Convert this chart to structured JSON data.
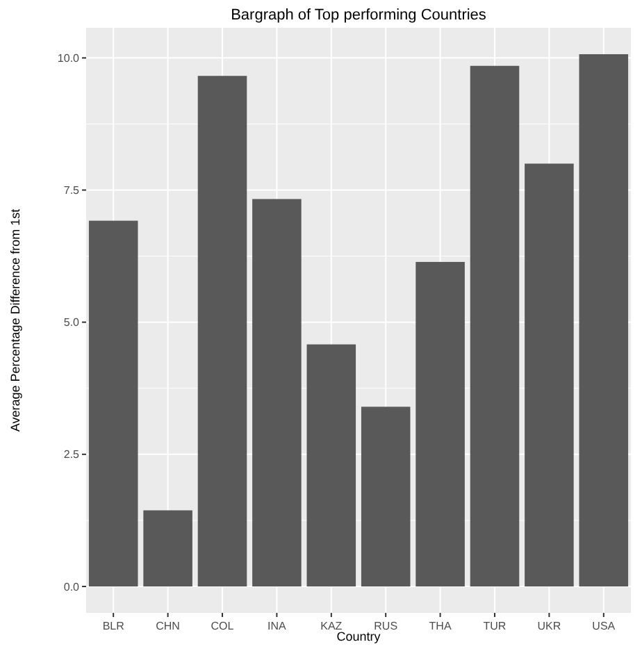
{
  "chart_data": {
    "type": "bar",
    "title": "Bargraph of Top performing Countries",
    "xlabel": "Country",
    "ylabel": "Average Percentage Difference from 1st",
    "categories": [
      "BLR",
      "CHN",
      "COL",
      "INA",
      "KAZ",
      "RUS",
      "THA",
      "TUR",
      "UKR",
      "USA"
    ],
    "values": [
      6.92,
      1.44,
      9.66,
      7.33,
      4.58,
      3.4,
      6.14,
      9.85,
      8.0,
      10.07
    ],
    "color": "#595959",
    "ylim": [
      -0.5,
      10.57
    ],
    "yticks": [
      {
        "value": 0,
        "label": "0.0"
      },
      {
        "value": 2.5,
        "label": "2.5"
      },
      {
        "value": 5,
        "label": "5.0"
      },
      {
        "value": 7.5,
        "label": "7.5"
      },
      {
        "value": 10,
        "label": "10.0"
      }
    ],
    "grid": true
  }
}
